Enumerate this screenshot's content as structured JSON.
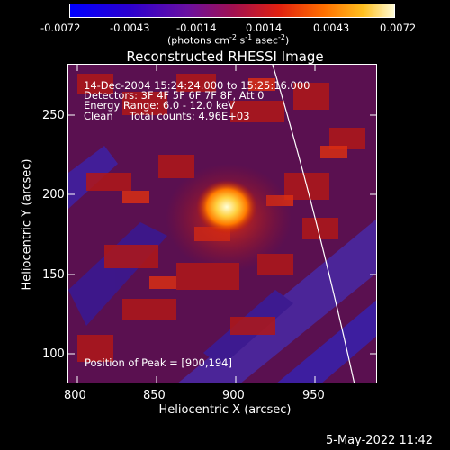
{
  "colorbar": {
    "ticks": [
      "-0.0072",
      "-0.0043",
      "-0.0014",
      "0.0014",
      "0.0043",
      "0.0072"
    ],
    "units_prefix": "(photons cm",
    "units_exp1": "-2",
    "units_mid": " s",
    "units_exp2": "-1",
    "units_mid2": " asec",
    "units_exp3": "-2",
    "units_suffix": ")"
  },
  "plot": {
    "title": "Reconstructed RHESSI Image",
    "xlabel": "Heliocentric X (arcsec)",
    "ylabel": "Heliocentric Y (arcsec)",
    "x_ticks": [
      "800",
      "850",
      "900",
      "950"
    ],
    "y_ticks": [
      "250",
      "200",
      "150",
      "100"
    ],
    "info_lines": [
      "14-Dec-2004 15:24:24.000 to 15:25:16.000",
      "Detectors: 3F 4F 5F 6F 7F 8F, Att 0",
      "Energy Range: 6.0 - 12.0 keV",
      "Clean     Total counts: 4.96E+03"
    ],
    "peak_label": "Position of Peak = [900,194]"
  },
  "footer": {
    "date_label": "5-May-2022 11:42"
  }
}
